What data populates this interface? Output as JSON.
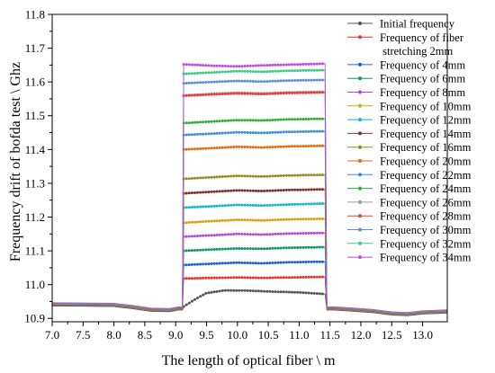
{
  "chart_data": {
    "type": "line",
    "xlabel": "The length of optical fiber \\ m",
    "ylabel": "Frequency drift of bofda test \\ Ghz",
    "xlim": [
      7.0,
      13.4
    ],
    "ylim": [
      10.89,
      11.8
    ],
    "xticks": [
      "7.0",
      "7.5",
      "8.0",
      "8.5",
      "9.0",
      "9.5",
      "10.0",
      "10.5",
      "11.0",
      "11.5",
      "12.0",
      "12.5",
      "13.0"
    ],
    "yticks": [
      "10.9",
      "11.0",
      "11.1",
      "11.2",
      "11.3",
      "11.4",
      "11.5",
      "11.6",
      "11.7",
      "11.8"
    ],
    "legend_position": "right",
    "baseline_left": [
      [
        7.0,
        10.942
      ],
      [
        7.5,
        10.941
      ],
      [
        8.0,
        10.94
      ],
      [
        8.3,
        10.934
      ],
      [
        8.6,
        10.926
      ],
      [
        8.9,
        10.925
      ],
      [
        9.05,
        10.93
      ]
    ],
    "baseline_right": [
      [
        11.55,
        10.93
      ],
      [
        11.9,
        10.926
      ],
      [
        12.2,
        10.922
      ],
      [
        12.5,
        10.915
      ],
      [
        12.75,
        10.913
      ],
      [
        13.0,
        10.918
      ],
      [
        13.4,
        10.921
      ]
    ],
    "plateau_start": 9.13,
    "plateau_end": 11.42,
    "series": [
      {
        "name": "Initial frequency",
        "color": "#555555",
        "plateau": [
          [
            9.13,
            10.935
          ],
          [
            9.3,
            10.955
          ],
          [
            9.5,
            10.975
          ],
          [
            9.8,
            10.983
          ],
          [
            10.2,
            10.982
          ],
          [
            10.6,
            10.979
          ],
          [
            11.0,
            10.977
          ],
          [
            11.42,
            10.972
          ]
        ]
      },
      {
        "name": "Frequency of fiber stretching 2mm",
        "color": "#e8322a",
        "plateau": [
          [
            9.13,
            11.018
          ],
          [
            9.6,
            11.02
          ],
          [
            10.0,
            11.021
          ],
          [
            10.4,
            11.02
          ],
          [
            10.8,
            11.021
          ],
          [
            11.42,
            11.023
          ]
        ]
      },
      {
        "name": "Frequency of 4mm",
        "color": "#1f5fd1",
        "plateau": [
          [
            9.13,
            11.058
          ],
          [
            9.6,
            11.062
          ],
          [
            10.0,
            11.065
          ],
          [
            10.4,
            11.063
          ],
          [
            10.8,
            11.066
          ],
          [
            11.42,
            11.068
          ]
        ]
      },
      {
        "name": "Frequency of 6mm",
        "color": "#0d9a5c",
        "plateau": [
          [
            9.13,
            11.1
          ],
          [
            9.6,
            11.104
          ],
          [
            10.0,
            11.107
          ],
          [
            10.4,
            11.106
          ],
          [
            10.8,
            11.109
          ],
          [
            11.42,
            11.111
          ]
        ]
      },
      {
        "name": "Frequency of 8mm",
        "color": "#b04ad8",
        "plateau": [
          [
            9.13,
            11.142
          ],
          [
            9.6,
            11.146
          ],
          [
            10.0,
            11.15
          ],
          [
            10.4,
            11.148
          ],
          [
            10.8,
            11.151
          ],
          [
            11.42,
            11.153
          ]
        ]
      },
      {
        "name": "Frequency of 10mm",
        "color": "#d9a10c",
        "plateau": [
          [
            9.13,
            11.183
          ],
          [
            9.6,
            11.188
          ],
          [
            10.0,
            11.192
          ],
          [
            10.4,
            11.19
          ],
          [
            10.8,
            11.193
          ],
          [
            11.42,
            11.195
          ]
        ]
      },
      {
        "name": "Frequency of 12mm",
        "color": "#11b8c9",
        "plateau": [
          [
            9.13,
            11.228
          ],
          [
            9.6,
            11.232
          ],
          [
            10.0,
            11.236
          ],
          [
            10.4,
            11.234
          ],
          [
            10.8,
            11.237
          ],
          [
            11.42,
            11.24
          ]
        ]
      },
      {
        "name": "Frequency of 14mm",
        "color": "#7a2e2e",
        "plateau": [
          [
            9.13,
            11.27
          ],
          [
            9.6,
            11.275
          ],
          [
            10.0,
            11.279
          ],
          [
            10.4,
            11.277
          ],
          [
            10.8,
            11.28
          ],
          [
            11.42,
            11.282
          ]
        ]
      },
      {
        "name": "Frequency of 16mm",
        "color": "#8e8e1c",
        "plateau": [
          [
            9.13,
            11.313
          ],
          [
            9.6,
            11.318
          ],
          [
            10.0,
            11.322
          ],
          [
            10.4,
            11.32
          ],
          [
            10.8,
            11.323
          ],
          [
            11.42,
            11.325
          ]
        ]
      },
      {
        "name": "Frequency of 20mm",
        "color": "#e36a0e",
        "plateau": [
          [
            9.13,
            11.4
          ],
          [
            9.6,
            11.404
          ],
          [
            10.0,
            11.408
          ],
          [
            10.4,
            11.406
          ],
          [
            10.8,
            11.409
          ],
          [
            11.42,
            11.411
          ]
        ]
      },
      {
        "name": "Frequency of 22mm",
        "color": "#3d8fd6",
        "plateau": [
          [
            9.13,
            11.443
          ],
          [
            9.6,
            11.447
          ],
          [
            10.0,
            11.451
          ],
          [
            10.4,
            11.449
          ],
          [
            10.8,
            11.452
          ],
          [
            11.42,
            11.454
          ]
        ]
      },
      {
        "name": "Frequency of 24mm",
        "color": "#2eae2e",
        "plateau": [
          [
            9.13,
            11.478
          ],
          [
            9.6,
            11.483
          ],
          [
            10.0,
            11.487
          ],
          [
            10.4,
            11.486
          ],
          [
            10.8,
            11.489
          ],
          [
            11.42,
            11.491
          ]
        ]
      },
      {
        "name": "Frequency of 26mm",
        "color": "#9a9a9a",
        "plateau": [
          [
            9.13,
            11.56
          ],
          [
            9.6,
            11.565
          ],
          [
            10.0,
            11.568
          ],
          [
            10.4,
            11.566
          ],
          [
            10.8,
            11.569
          ],
          [
            11.42,
            11.571
          ]
        ]
      },
      {
        "name": "Frequency of 28mm",
        "color": "#f03a3a",
        "plateau": [
          [
            9.13,
            11.559
          ],
          [
            9.6,
            11.563
          ],
          [
            10.0,
            11.566
          ],
          [
            10.4,
            11.564
          ],
          [
            10.8,
            11.567
          ],
          [
            11.42,
            11.569
          ]
        ]
      },
      {
        "name": "Frequency of 30mm",
        "color": "#5a8de0",
        "plateau": [
          [
            9.13,
            11.596
          ],
          [
            9.6,
            11.6
          ],
          [
            10.0,
            11.603
          ],
          [
            10.4,
            11.601
          ],
          [
            10.8,
            11.604
          ],
          [
            11.42,
            11.606
          ]
        ]
      },
      {
        "name": "Frequency of 32mm",
        "color": "#3ec98a",
        "plateau": [
          [
            9.13,
            11.624
          ],
          [
            9.6,
            11.628
          ],
          [
            10.0,
            11.632
          ],
          [
            10.4,
            11.63
          ],
          [
            10.8,
            11.633
          ],
          [
            11.42,
            11.635
          ]
        ]
      },
      {
        "name": "Frequency of 34mm",
        "color": "#c04be3",
        "plateau": [
          [
            9.13,
            11.652
          ],
          [
            9.6,
            11.648
          ],
          [
            10.0,
            11.646
          ],
          [
            10.4,
            11.649
          ],
          [
            10.8,
            11.651
          ],
          [
            11.42,
            11.654
          ]
        ]
      }
    ]
  }
}
